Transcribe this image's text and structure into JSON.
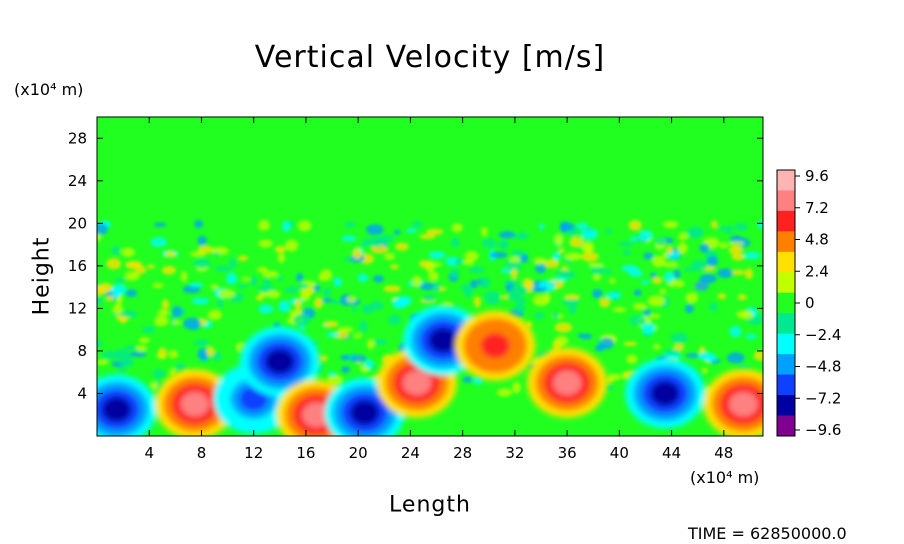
{
  "chart_data": {
    "type": "heatmap",
    "title": "Vertical Velocity [m/s]",
    "xlabel": "Length",
    "ylabel": "Height",
    "x_unit": "(x10⁴ m)",
    "y_unit": "(x10⁴ m)",
    "xlim": [
      0,
      51
    ],
    "ylim": [
      0,
      30
    ],
    "xticks": [
      "4",
      "8",
      "12",
      "16",
      "20",
      "24",
      "28",
      "32",
      "36",
      "40",
      "44",
      "48"
    ],
    "yticks": [
      "4",
      "8",
      "12",
      "16",
      "20",
      "24",
      "28"
    ],
    "colorbar": {
      "labels": [
        "9.6",
        "7.2",
        "4.8",
        "2.4",
        "0",
        "−2.4",
        "−4.8",
        "−7.2",
        "−9.6"
      ],
      "colors": [
        "#ffb4b4",
        "#ff8080",
        "#ff2020",
        "#ff8000",
        "#ffe000",
        "#c0ff00",
        "#20ff20",
        "#00e890",
        "#00ffff",
        "#00a0ff",
        "#1040ff",
        "#0000a0",
        "#800090"
      ]
    },
    "features": [
      {
        "x": 1.5,
        "y": 2.5,
        "value": -9.6
      },
      {
        "x": 7.5,
        "y": 3.0,
        "value": 9.6
      },
      {
        "x": 12.0,
        "y": 3.5,
        "value": -7.2
      },
      {
        "x": 14.0,
        "y": 7.0,
        "value": -8.0
      },
      {
        "x": 16.8,
        "y": 2.0,
        "value": 9.6
      },
      {
        "x": 20.5,
        "y": 2.2,
        "value": -9.6
      },
      {
        "x": 24.5,
        "y": 5.0,
        "value": 9.0
      },
      {
        "x": 26.5,
        "y": 9.0,
        "value": -9.0
      },
      {
        "x": 30.5,
        "y": 8.5,
        "value": 7.5
      },
      {
        "x": 36.0,
        "y": 5.0,
        "value": 9.6
      },
      {
        "x": 43.5,
        "y": 4.0,
        "value": -9.6
      },
      {
        "x": 49.5,
        "y": 3.0,
        "value": 9.6
      }
    ]
  },
  "time_label": "TIME = 62850000.0"
}
